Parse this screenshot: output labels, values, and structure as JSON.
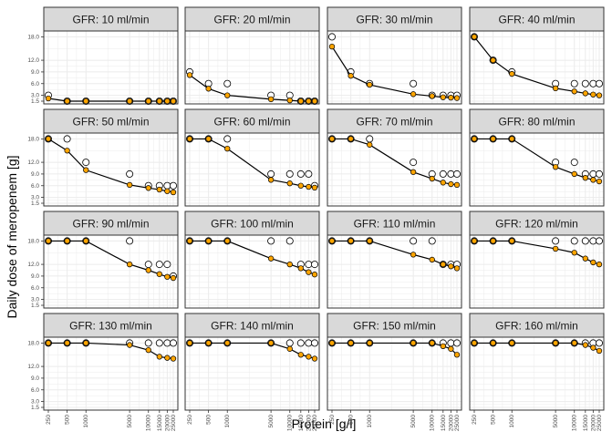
{
  "chart_data": {
    "type": "scatter",
    "ylabel": "Daily dose of meropenem [g]",
    "xlabel": "Protein [g/l]",
    "x_scale": "log",
    "x_ticks": [
      250,
      500,
      1000,
      5000,
      10000,
      15000,
      20000,
      25000
    ],
    "y_ticks": [
      1.5,
      3.0,
      6.0,
      9.0,
      12.0,
      18.0
    ],
    "ylim": [
      0.8,
      19.5
    ],
    "grid": true,
    "colors": {
      "connected": "#FFA500",
      "open": "#FFFFFF",
      "line": "#000000",
      "strip": "#D9D9D9",
      "panel_border": "#333333",
      "grid": "#EBEBEB"
    },
    "x": [
      250,
      500,
      1000,
      5000,
      10000,
      15000,
      20000,
      25000
    ],
    "panels": [
      {
        "label": "GFR: 10 ml/min",
        "filled": [
          2.2,
          1.5,
          1.5,
          1.5,
          1.5,
          1.5,
          1.5,
          1.5
        ],
        "open": [
          3.0,
          1.5,
          1.5,
          1.5,
          1.5,
          1.5,
          1.5,
          1.5
        ]
      },
      {
        "label": "GFR: 20 ml/min",
        "filled": [
          8.2,
          4.7,
          3.0,
          2.0,
          1.7,
          1.5,
          1.5,
          1.5
        ],
        "open": [
          9.0,
          6.0,
          6.0,
          3.0,
          3.0,
          1.5,
          1.5,
          1.5
        ]
      },
      {
        "label": "GFR: 30 ml/min",
        "filled": [
          15.5,
          8.0,
          5.7,
          3.3,
          2.8,
          2.5,
          2.4,
          2.3
        ],
        "open": [
          18.0,
          9.0,
          6.0,
          6.0,
          3.0,
          3.0,
          3.0,
          3.0
        ]
      },
      {
        "label": "GFR: 40 ml/min",
        "filled": [
          18.0,
          12.0,
          8.5,
          4.8,
          4.0,
          3.5,
          3.2,
          3.0
        ],
        "open": [
          18.0,
          12.0,
          9.0,
          6.0,
          6.0,
          6.0,
          6.0,
          6.0
        ]
      },
      {
        "label": "GFR: 50 ml/min",
        "filled": [
          18.0,
          15.0,
          10.0,
          6.2,
          5.4,
          5.0,
          4.6,
          4.3
        ],
        "open": [
          18.0,
          18.0,
          12.0,
          9.0,
          6.0,
          6.0,
          6.0,
          6.0
        ]
      },
      {
        "label": "GFR: 60 ml/min",
        "filled": [
          18.0,
          18.0,
          15.5,
          7.5,
          6.6,
          6.0,
          5.7,
          5.5
        ],
        "open": [
          18.0,
          18.0,
          18.0,
          9.0,
          9.0,
          9.0,
          9.0,
          6.0
        ]
      },
      {
        "label": "GFR: 70 ml/min",
        "filled": [
          18.0,
          18.0,
          16.5,
          9.5,
          7.8,
          6.8,
          6.4,
          6.2
        ],
        "open": [
          18.0,
          18.0,
          18.0,
          12.0,
          9.0,
          9.0,
          9.0,
          9.0
        ]
      },
      {
        "label": "GFR: 80 ml/min",
        "filled": [
          18.0,
          18.0,
          18.0,
          10.8,
          9.0,
          8.0,
          7.5,
          7.1
        ],
        "open": [
          18.0,
          18.0,
          18.0,
          12.0,
          12.0,
          9.0,
          9.0,
          9.0
        ]
      },
      {
        "label": "GFR: 90 ml/min",
        "filled": [
          18.0,
          18.0,
          18.0,
          12.0,
          10.5,
          9.5,
          8.8,
          8.5
        ],
        "open": [
          18.0,
          18.0,
          18.0,
          18.0,
          12.0,
          12.0,
          12.0,
          9.0
        ]
      },
      {
        "label": "GFR: 100 ml/min",
        "filled": [
          18.0,
          18.0,
          18.0,
          13.5,
          12.0,
          11.0,
          10.0,
          9.4
        ],
        "open": [
          18.0,
          18.0,
          18.0,
          18.0,
          18.0,
          12.0,
          12.0,
          12.0
        ]
      },
      {
        "label": "GFR: 110 ml/min",
        "filled": [
          18.0,
          18.0,
          18.0,
          14.5,
          13.2,
          12.0,
          11.5,
          11.0
        ],
        "open": [
          18.0,
          18.0,
          18.0,
          18.0,
          18.0,
          12.0,
          12.0,
          12.0
        ]
      },
      {
        "label": "GFR: 120 ml/min",
        "filled": [
          18.0,
          18.0,
          18.0,
          16.0,
          15.0,
          13.5,
          12.5,
          12.0
        ],
        "open": [
          18.0,
          18.0,
          18.0,
          18.0,
          18.0,
          18.0,
          18.0,
          18.0
        ]
      },
      {
        "label": "GFR: 130 ml/min",
        "filled": [
          18.0,
          18.0,
          18.0,
          17.5,
          16.2,
          14.5,
          14.2,
          14.0
        ],
        "open": [
          18.0,
          18.0,
          18.0,
          18.0,
          18.0,
          18.0,
          18.0,
          18.0
        ]
      },
      {
        "label": "GFR: 140 ml/min",
        "filled": [
          18.0,
          18.0,
          18.0,
          18.0,
          16.5,
          15.0,
          14.5,
          14.0
        ],
        "open": [
          18.0,
          18.0,
          18.0,
          18.0,
          18.0,
          18.0,
          18.0,
          18.0
        ]
      },
      {
        "label": "GFR: 150 ml/min",
        "filled": [
          18.0,
          18.0,
          18.0,
          18.0,
          18.0,
          17.2,
          16.5,
          15.0
        ],
        "open": [
          18.0,
          18.0,
          18.0,
          18.0,
          18.0,
          18.0,
          18.0,
          18.0
        ]
      },
      {
        "label": "GFR: 160 ml/min",
        "filled": [
          18.0,
          18.0,
          18.0,
          18.0,
          18.0,
          17.5,
          16.8,
          16.0
        ],
        "open": [
          18.0,
          18.0,
          18.0,
          18.0,
          18.0,
          18.0,
          18.0,
          18.0
        ]
      }
    ]
  }
}
